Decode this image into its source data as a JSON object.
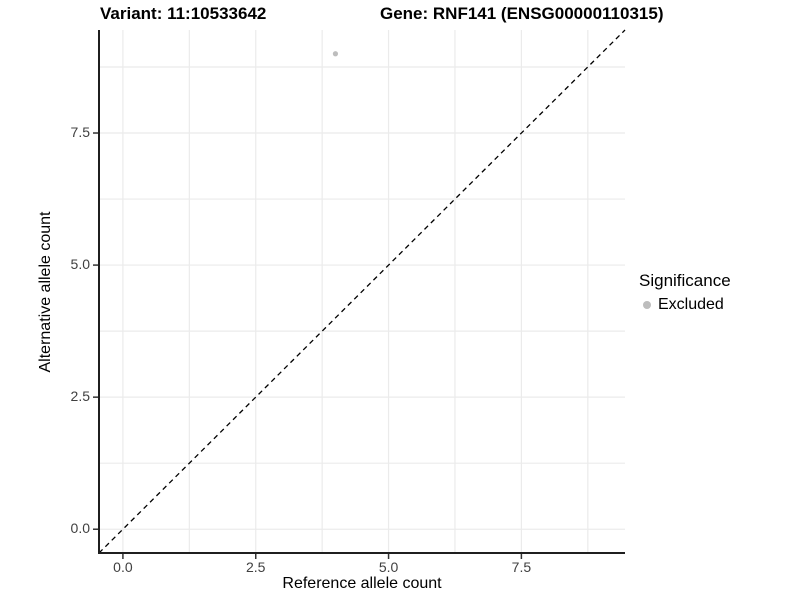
{
  "title": {
    "variant_label": "Variant: 11:10533642",
    "gene_label": "Gene: RNF141 (ENSG00000110315)"
  },
  "chart_data": {
    "type": "scatter",
    "title": "Variant: 11:10533642    Gene: RNF141 (ENSG00000110315)",
    "xlabel": "Reference allele count",
    "ylabel": "Alternative allele count",
    "xlim": [
      -0.45,
      9.45
    ],
    "ylim": [
      -0.45,
      9.45
    ],
    "x_ticks": [
      0.0,
      2.5,
      5.0,
      7.5
    ],
    "y_ticks": [
      0.0,
      2.5,
      5.0,
      7.5
    ],
    "x_tick_labels": [
      "0.0",
      "2.5",
      "5.0",
      "7.5"
    ],
    "y_tick_labels": [
      "0.0",
      "2.5",
      "5.0",
      "7.5"
    ],
    "grid": true,
    "grid_values": [
      0,
      1.25,
      2.5,
      3.75,
      5,
      6.25,
      7.5,
      8.75
    ],
    "points": [
      {
        "x": 4,
        "y": 9,
        "series": "Excluded"
      }
    ],
    "series": [
      {
        "name": "Excluded",
        "color": "#bdbdbd"
      }
    ],
    "reference_line": {
      "style": "dashed",
      "slope": 1,
      "intercept": 0,
      "from": [
        -0.45,
        -0.45
      ],
      "to": [
        9.45,
        9.45
      ]
    },
    "legend": {
      "title": "Significance",
      "position": "right",
      "items": [
        {
          "label": "Excluded",
          "color": "#bdbdbd"
        }
      ]
    }
  },
  "colors": {
    "background": "#ffffff",
    "grid": "#ebebeb",
    "axis_line": "#1f1f1f",
    "tick_mark": "#333333",
    "tick_text": "#404040",
    "text": "#000000",
    "point": "#bdbdbd",
    "reference_line": "#000000"
  }
}
